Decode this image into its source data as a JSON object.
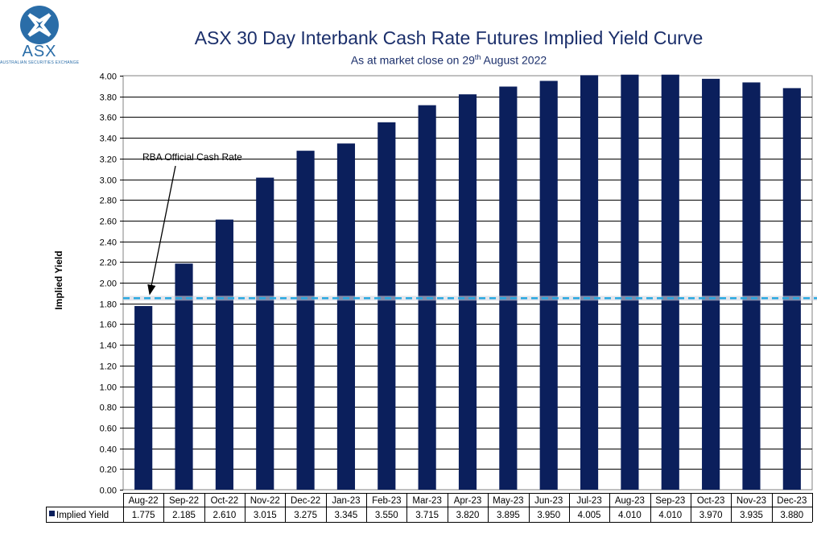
{
  "logo": {
    "text": "ASX",
    "subtext": "AUSTRALIAN SECURITIES EXCHANGE"
  },
  "colors": {
    "bar": "#0b1f5c",
    "reference_line": "#29a8e0",
    "logo": "#2a6da8",
    "title": "#1b2f6b"
  },
  "chart_data": {
    "type": "bar",
    "title": "ASX 30 Day Interbank Cash Rate Futures Implied Yield Curve",
    "subtitle_pre": "As at market close on 29",
    "subtitle_sup": "th",
    "subtitle_post": " August 2022",
    "ylabel": "Implied Yield",
    "xlabel": "",
    "ylim": [
      0,
      4.0
    ],
    "ytick_step": 0.2,
    "grid": true,
    "categories": [
      "Aug-22",
      "Sep-22",
      "Oct-22",
      "Nov-22",
      "Dec-22",
      "Jan-23",
      "Feb-23",
      "Mar-23",
      "Apr-23",
      "May-23",
      "Jun-23",
      "Jul-23",
      "Aug-23",
      "Sep-23",
      "Oct-23",
      "Nov-23",
      "Dec-23"
    ],
    "series": [
      {
        "name": "Implied Yield",
        "values": [
          1.775,
          2.185,
          2.61,
          3.015,
          3.275,
          3.345,
          3.55,
          3.715,
          3.82,
          3.895,
          3.95,
          4.005,
          4.01,
          4.01,
          3.97,
          3.935,
          3.88
        ],
        "labels": [
          "1.775",
          "2.185",
          "2.610",
          "3.015",
          "3.275",
          "3.345",
          "3.550",
          "3.715",
          "3.820",
          "3.895",
          "3.950",
          "4.005",
          "4.010",
          "4.010",
          "3.970",
          "3.935",
          "3.880"
        ]
      }
    ],
    "reference_line": {
      "label": "RBA Official Cash Rate",
      "value": 1.85,
      "style": "dashed"
    }
  }
}
